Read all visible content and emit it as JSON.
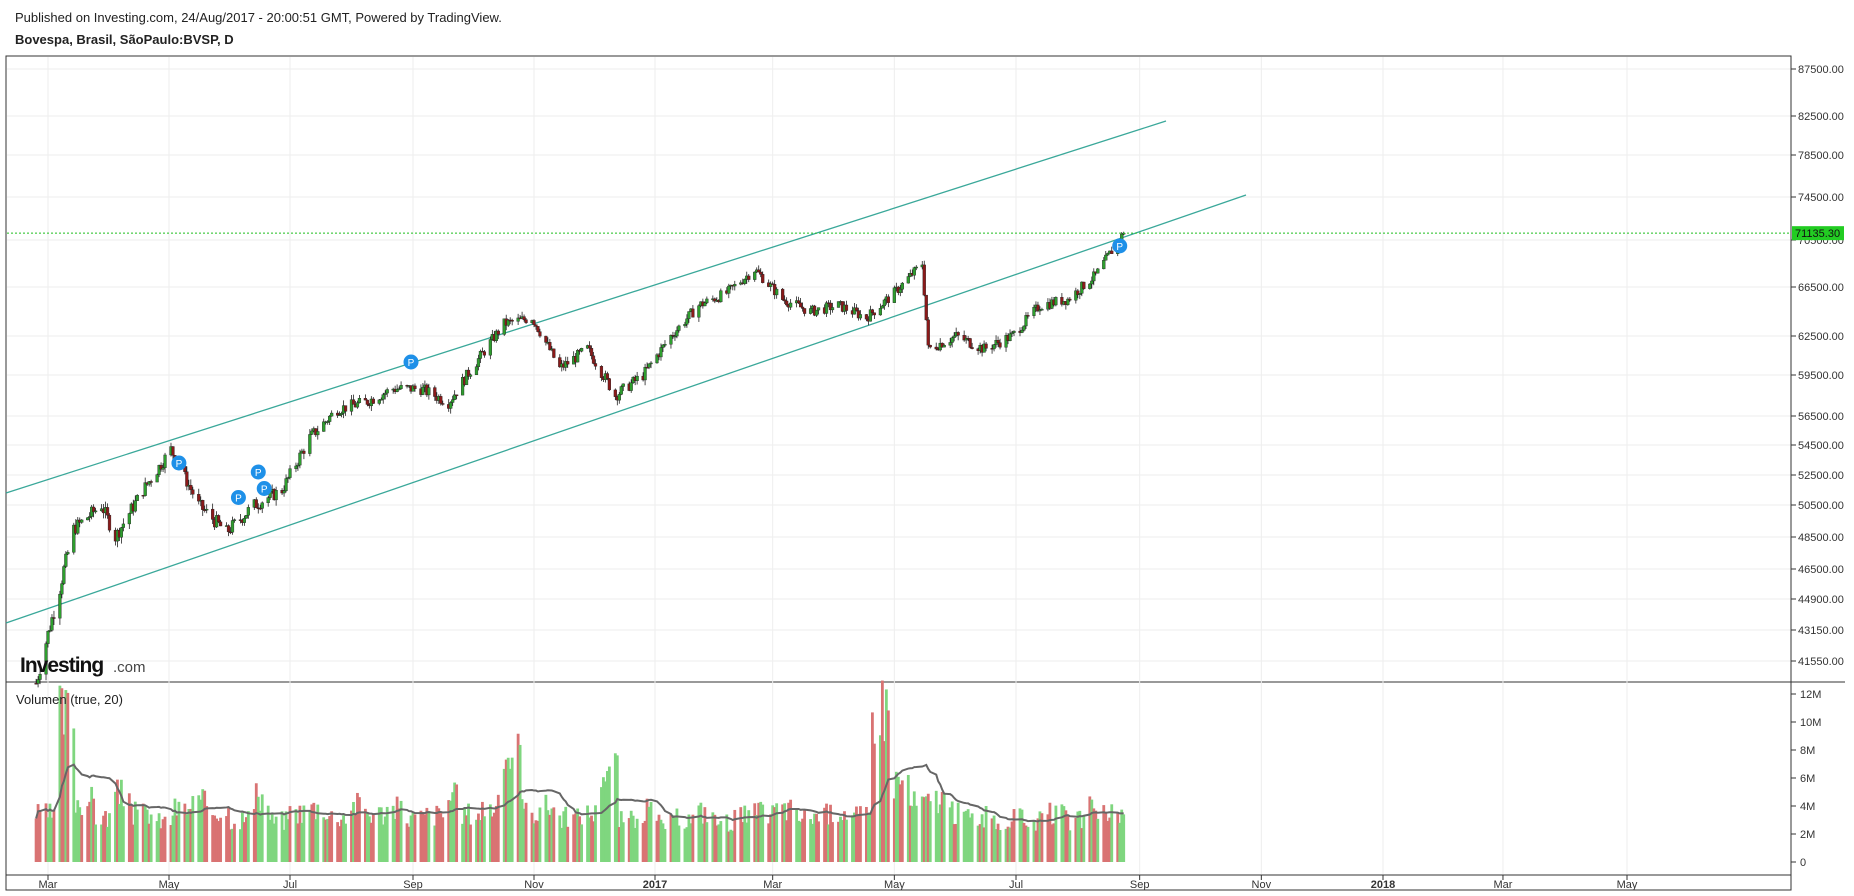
{
  "header": {
    "published": "Published on Investing.com, 24/Aug/2017 - 20:00:51 GMT, Powered by TradingView.",
    "symbol": "Bovespa, Brasil, SãoPaulo:BVSP, D"
  },
  "logo": {
    "main": "Investing",
    "suffix": ".com"
  },
  "colors": {
    "up": "#2e9e2e",
    "down": "#8b1a1a",
    "channel": "#3aa89a",
    "price_line": "#1fbf1f",
    "vol_up": "#7fd67f",
    "vol_down": "#d97373",
    "vol_ma": "#666666",
    "marker": "#1e90e8"
  },
  "chart_data": {
    "type": "candlestick",
    "price_panel": {
      "y_ticks": [
        "87500.00",
        "82500.00",
        "78500.00",
        "74500.00",
        "70500.00",
        "66500.00",
        "62500.00",
        "59500.00",
        "56500.00",
        "54500.00",
        "52500.00",
        "50500.00",
        "48500.00",
        "46500.00",
        "44900.00",
        "43150.00",
        "41550.00"
      ],
      "last_price": "71135.30",
      "marker_label": "P",
      "series": [
        {
          "date": "2016-02-24",
          "close": 40400
        },
        {
          "date": "2016-03-07",
          "close": 45500
        },
        {
          "date": "2016-03-14",
          "close": 49000
        },
        {
          "date": "2016-03-28",
          "close": 50500
        },
        {
          "date": "2016-04-04",
          "close": 48500
        },
        {
          "date": "2016-04-18",
          "close": 51500
        },
        {
          "date": "2016-05-02",
          "close": 54200
        },
        {
          "date": "2016-05-16",
          "close": 50500
        },
        {
          "date": "2016-05-30",
          "close": 48800
        },
        {
          "date": "2016-06-13",
          "close": 50500
        },
        {
          "date": "2016-06-27",
          "close": 51500
        },
        {
          "date": "2016-07-11",
          "close": 55000
        },
        {
          "date": "2016-07-25",
          "close": 57000
        },
        {
          "date": "2016-08-08",
          "close": 57500
        },
        {
          "date": "2016-08-22",
          "close": 58500
        },
        {
          "date": "2016-09-05",
          "close": 58500
        },
        {
          "date": "2016-09-19",
          "close": 57500
        },
        {
          "date": "2016-10-03",
          "close": 60500
        },
        {
          "date": "2016-10-17",
          "close": 63500
        },
        {
          "date": "2016-10-31",
          "close": 64000
        },
        {
          "date": "2016-11-07",
          "close": 62000
        },
        {
          "date": "2016-11-14",
          "close": 60000
        },
        {
          "date": "2016-11-28",
          "close": 61500
        },
        {
          "date": "2016-12-12",
          "close": 58000
        },
        {
          "date": "2016-12-26",
          "close": 59500
        },
        {
          "date": "2017-01-09",
          "close": 62500
        },
        {
          "date": "2017-01-23",
          "close": 65000
        },
        {
          "date": "2017-02-06",
          "close": 66000
        },
        {
          "date": "2017-02-20",
          "close": 68000
        },
        {
          "date": "2017-03-06",
          "close": 65500
        },
        {
          "date": "2017-03-20",
          "close": 64500
        },
        {
          "date": "2017-04-03",
          "close": 65000
        },
        {
          "date": "2017-04-17",
          "close": 64000
        },
        {
          "date": "2017-05-01",
          "close": 66000
        },
        {
          "date": "2017-05-15",
          "close": 68500
        },
        {
          "date": "2017-05-18",
          "close": 61500
        },
        {
          "date": "2017-06-01",
          "close": 62500
        },
        {
          "date": "2017-06-15",
          "close": 61500
        },
        {
          "date": "2017-06-29",
          "close": 62500
        },
        {
          "date": "2017-07-13",
          "close": 65000
        },
        {
          "date": "2017-07-27",
          "close": 65500
        },
        {
          "date": "2017-08-10",
          "close": 67500
        },
        {
          "date": "2017-08-24",
          "close": 71135.3
        }
      ]
    },
    "volume_panel": {
      "title": "Volumen (true, 20)",
      "y_ticks": [
        "12M",
        "10M",
        "8M",
        "6M",
        "4M",
        "2M",
        "0"
      ],
      "series_millions": [
        3.4,
        10.5,
        4.4,
        3.2,
        4.8,
        3.5,
        2.9,
        3.8,
        4.2,
        3.7,
        3.1,
        4.5,
        3.0,
        3.6,
        3.9,
        3.3,
        4.1,
        3.5,
        3.8,
        3.2,
        3.4,
        4.6,
        3.5,
        3.9,
        7.8,
        3.6,
        4.0,
        3.2,
        3.5,
        6.8,
        3.0,
        3.7,
        2.8,
        3.1,
        3.6,
        2.9,
        3.3,
        3.5,
        3.8,
        3.2,
        3.4,
        3.7,
        3.3,
        11.2,
        5.8,
        4.2,
        4.6,
        3.5,
        3.2,
        2.7,
        3.1,
        2.9,
        3.4,
        3.0,
        3.8,
        3.3
      ]
    },
    "x_ticks": [
      {
        "label": "Mar",
        "date": "2016-03-01",
        "bold": false
      },
      {
        "label": "May",
        "date": "2016-05-01",
        "bold": false
      },
      {
        "label": "Jul",
        "date": "2016-07-01",
        "bold": false
      },
      {
        "label": "Sep",
        "date": "2016-09-01",
        "bold": false
      },
      {
        "label": "Nov",
        "date": "2016-11-01",
        "bold": false
      },
      {
        "label": "2017",
        "date": "2017-01-01",
        "bold": true
      },
      {
        "label": "Mar",
        "date": "2017-03-01",
        "bold": false
      },
      {
        "label": "May",
        "date": "2017-05-01",
        "bold": false
      },
      {
        "label": "Jul",
        "date": "2017-07-01",
        "bold": false
      },
      {
        "label": "Sep",
        "date": "2017-09-01",
        "bold": false
      },
      {
        "label": "Nov",
        "date": "2017-11-01",
        "bold": false
      },
      {
        "label": "2018",
        "date": "2018-01-01",
        "bold": true
      },
      {
        "label": "Mar",
        "date": "2018-03-01",
        "bold": false
      },
      {
        "label": "May",
        "date": "2018-05-01",
        "bold": false
      }
    ],
    "grid": true
  }
}
